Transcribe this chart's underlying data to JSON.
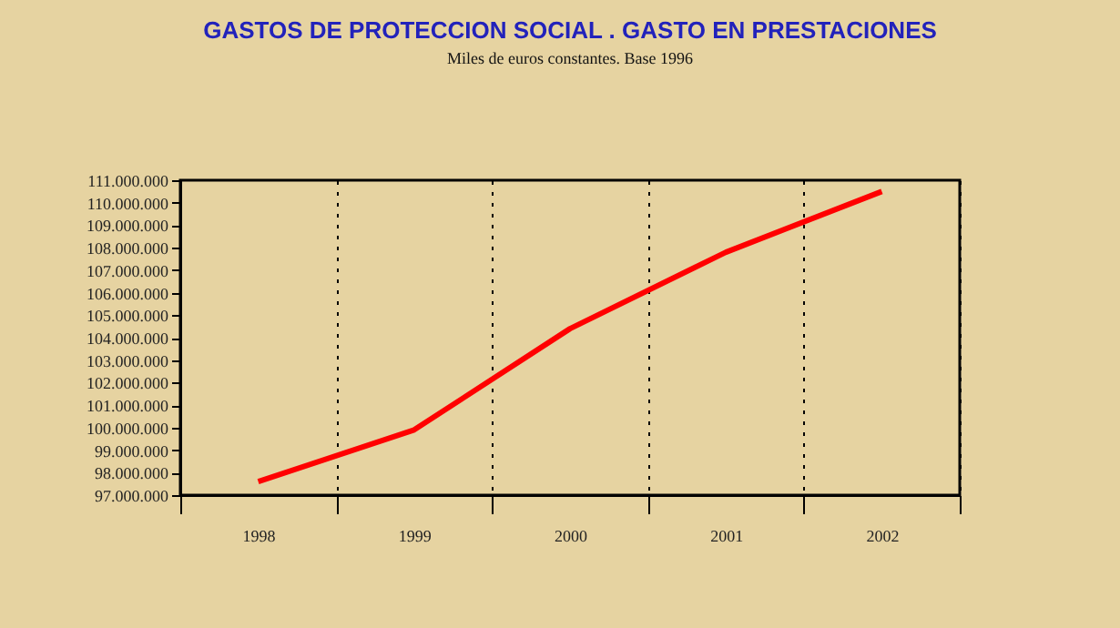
{
  "chart_data": {
    "type": "line",
    "title": "GASTOS DE PROTECCION SOCIAL .  GASTO EN PRESTACIONES",
    "subtitle": "Miles de euros constantes. Base 1996",
    "categories": [
      "1998",
      "1999",
      "2000",
      "2001",
      "2002"
    ],
    "series": [
      {
        "color": "#ff0000",
        "values": [
          97600000,
          99900000,
          104400000,
          107800000,
          110500000
        ]
      }
    ],
    "ylim": [
      97000000,
      111000000
    ],
    "yticks": [
      {
        "value": 97000000,
        "label": "97.000.000"
      },
      {
        "value": 98000000,
        "label": "98.000.000"
      },
      {
        "value": 99000000,
        "label": "99.000.000"
      },
      {
        "value": 100000000,
        "label": "100.000.000"
      },
      {
        "value": 101000000,
        "label": "101.000.000"
      },
      {
        "value": 102000000,
        "label": "102.000.000"
      },
      {
        "value": 103000000,
        "label": "103.000.000"
      },
      {
        "value": 104000000,
        "label": "104.000.000"
      },
      {
        "value": 105000000,
        "label": "105.000.000"
      },
      {
        "value": 106000000,
        "label": "106.000.000"
      },
      {
        "value": 107000000,
        "label": "107.000.000"
      },
      {
        "value": 108000000,
        "label": "108.000.000"
      },
      {
        "value": 109000000,
        "label": "109.000.000"
      },
      {
        "value": 110000000,
        "label": "110.000.000"
      },
      {
        "value": 111000000,
        "label": "111.000.000"
      }
    ],
    "grid": "x",
    "marker": "none",
    "line_style": "solid"
  }
}
